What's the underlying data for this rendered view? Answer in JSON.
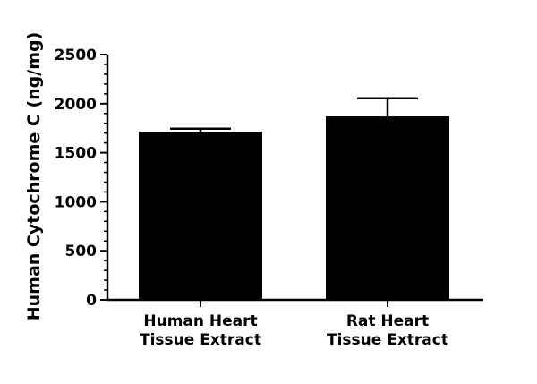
{
  "chart_data": {
    "type": "bar",
    "title": "",
    "xlabel": "",
    "ylabel": "Human Cytochrome C (ng/mg)",
    "categories": [
      [
        "Human Heart",
        "Tissue Extract"
      ],
      [
        "Rat Heart",
        "Tissue Extract"
      ]
    ],
    "values": [
      1715,
      1870
    ],
    "error": [
      30,
      185
    ],
    "ylim": [
      0,
      2500
    ],
    "yticks": [
      0,
      500,
      1000,
      1500,
      2000,
      2500
    ],
    "yticks_labels": [
      "0",
      "500",
      "1000",
      "1500",
      "2000",
      "2500"
    ],
    "minor_step": 100,
    "bar_color": "#000000",
    "grid": false,
    "legend": "none"
  }
}
